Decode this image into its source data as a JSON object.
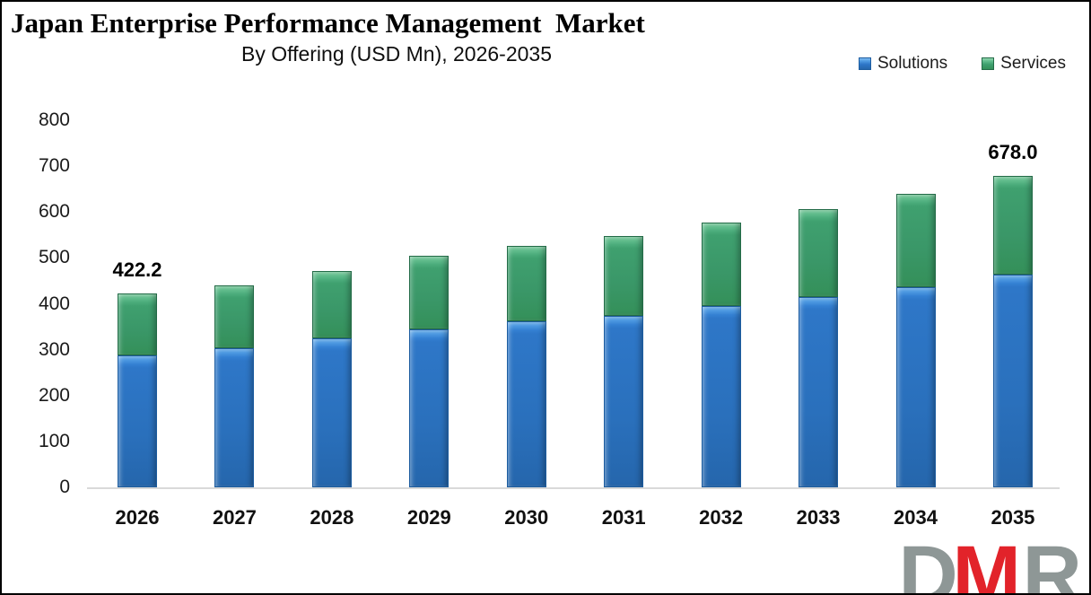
{
  "header": {
    "title": "Japan Enterprise Performance Management  Market",
    "subtitle": "By Offering (USD Mn), 2026-2035"
  },
  "legend": {
    "items": [
      {
        "label": "Solutions",
        "color": "#2E77C8"
      },
      {
        "label": "Services",
        "color": "#3FA06F"
      }
    ]
  },
  "chart_data": {
    "type": "bar",
    "stacked": true,
    "title": "Japan Enterprise Performance Management Market",
    "subtitle": "By Offering (USD Mn), 2026-2035",
    "unit": "USD Mn",
    "categories": [
      "2026",
      "2027",
      "2028",
      "2029",
      "2030",
      "2031",
      "2032",
      "2033",
      "2034",
      "2035"
    ],
    "series": [
      {
        "name": "Solutions",
        "color": "#2E77C8",
        "values": [
          287.0,
          303.0,
          324.0,
          344.0,
          361.0,
          373.0,
          395.0,
          415.0,
          436.0,
          464.0
        ]
      },
      {
        "name": "Services",
        "color": "#3FA06F",
        "values": [
          135.2,
          138.0,
          148.0,
          160.0,
          166.0,
          174.0,
          182.0,
          191.0,
          203.0,
          214.0
        ]
      }
    ],
    "totals": [
      422.2,
      441.0,
      472.0,
      504.0,
      527.0,
      547.0,
      577.0,
      606.0,
      639.0,
      678.0
    ],
    "data_labels": [
      {
        "index": 0,
        "text": "422.2"
      },
      {
        "index": 9,
        "text": "678.0"
      }
    ],
    "ylim": [
      0,
      800
    ],
    "yticks": [
      0,
      100,
      200,
      300,
      400,
      500,
      600,
      700,
      800
    ],
    "grid": false,
    "legend_position": "top-right"
  },
  "logo": {
    "letters": [
      {
        "char": "D",
        "color": "#8E9796"
      },
      {
        "char": "M",
        "color": "#E2232A"
      },
      {
        "char": "R",
        "color": "#8E9796"
      }
    ]
  }
}
